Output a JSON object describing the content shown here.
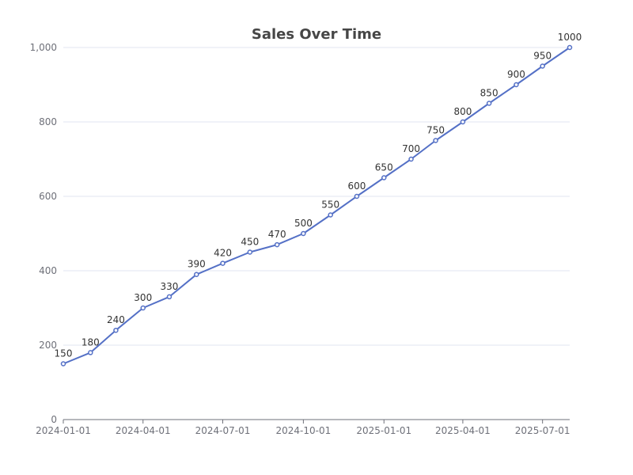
{
  "chart_data": {
    "type": "line",
    "title": "Sales Over Time",
    "xlabel": "",
    "ylabel": "",
    "x": [
      "2024-01-01",
      "2024-02-01",
      "2024-03-01",
      "2024-04-01",
      "2024-05-01",
      "2024-06-01",
      "2024-07-01",
      "2024-08-01",
      "2024-09-01",
      "2024-10-01",
      "2024-11-01",
      "2024-12-01",
      "2025-01-01",
      "2025-02-01",
      "2025-03-01",
      "2025-04-01",
      "2025-05-01",
      "2025-06-01",
      "2025-07-01",
      "2025-08-01"
    ],
    "series": [
      {
        "values": [
          150,
          180,
          240,
          300,
          330,
          390,
          420,
          450,
          470,
          500,
          550,
          600,
          650,
          700,
          750,
          800,
          850,
          900,
          950,
          1000
        ]
      }
    ],
    "x_ticks": [
      "2024-01-01",
      "2024-04-01",
      "2024-07-01",
      "2024-10-01",
      "2025-01-01",
      "2025-04-01",
      "2025-07-01"
    ],
    "y_ticks": [
      {
        "value": 0,
        "label": "0"
      },
      {
        "value": 200,
        "label": "200"
      },
      {
        "value": 400,
        "label": "400"
      },
      {
        "value": 600,
        "label": "600"
      },
      {
        "value": 800,
        "label": "800"
      },
      {
        "value": 1000,
        "label": "1,000"
      }
    ],
    "ylim": [
      0,
      1000
    ],
    "grid": true,
    "legend": "none",
    "colors": {
      "line": "#5470c6",
      "point_fill": "#ffffff",
      "grid": "#e0e6f1",
      "axis": "#6e7079",
      "title": "#464646",
      "data_label": "#333333"
    }
  }
}
